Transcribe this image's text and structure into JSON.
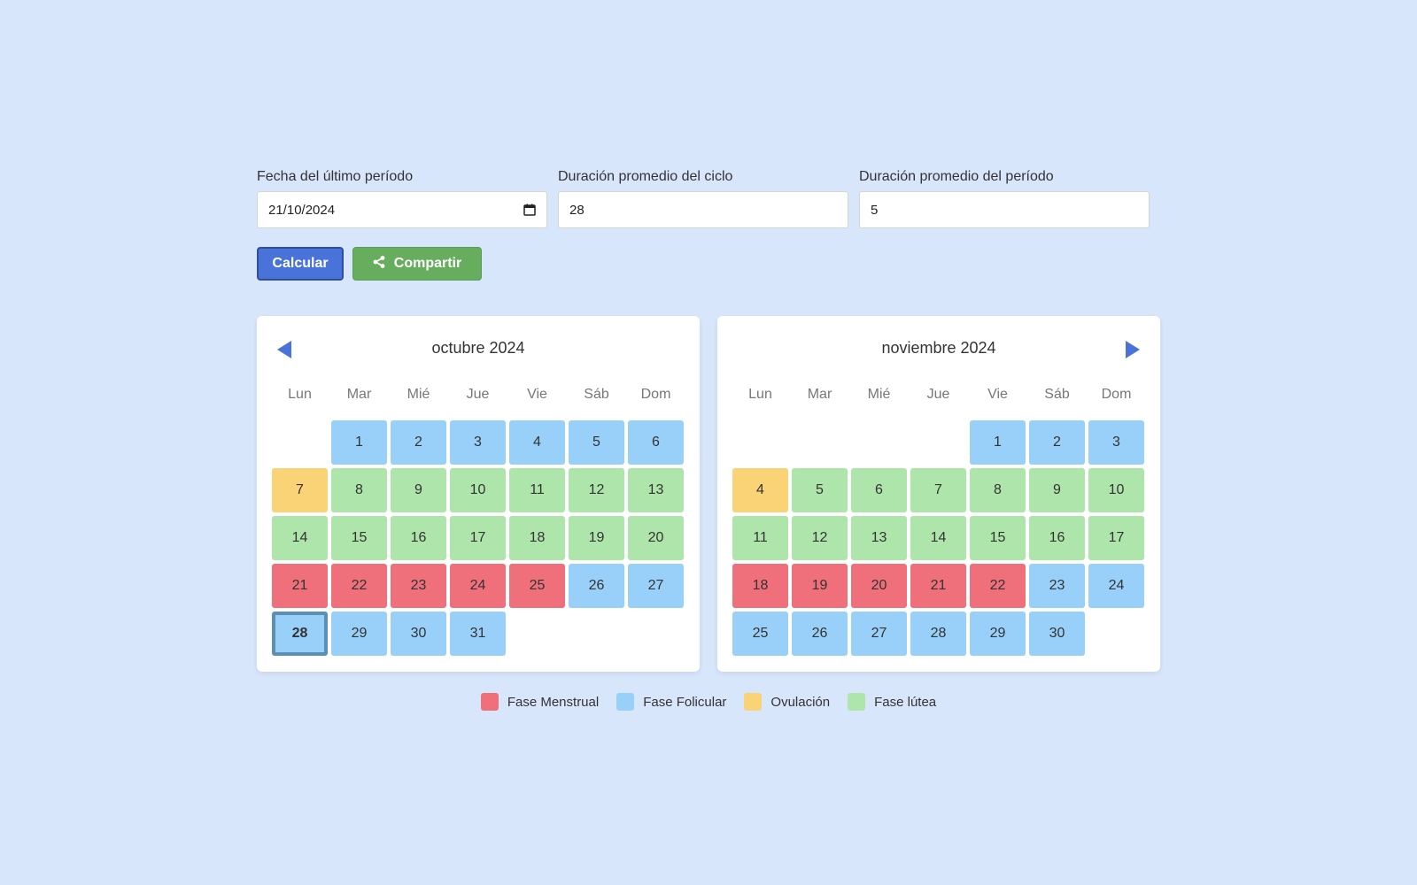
{
  "form": {
    "last_period": {
      "label": "Fecha del último período",
      "value": "21/10/2024"
    },
    "cycle_length": {
      "label": "Duración promedio del ciclo",
      "value": "28"
    },
    "period_length": {
      "label": "Duración promedio del período",
      "value": "5"
    }
  },
  "buttons": {
    "calculate": "Calcular",
    "share": "Compartir"
  },
  "weekdays": [
    "Lun",
    "Mar",
    "Mié",
    "Jue",
    "Vie",
    "Sáb",
    "Dom"
  ],
  "colors": {
    "menstrual": "#ef6f7b",
    "follicular": "#99d0f9",
    "ovulation": "#f9d376",
    "luteal": "#aee5aa"
  },
  "calendars": [
    {
      "title": "octubre 2024",
      "nav": "prev",
      "offset": 1,
      "today": 28,
      "days": [
        {
          "d": "1",
          "p": "follicular"
        },
        {
          "d": "2",
          "p": "follicular"
        },
        {
          "d": "3",
          "p": "follicular"
        },
        {
          "d": "4",
          "p": "follicular"
        },
        {
          "d": "5",
          "p": "follicular"
        },
        {
          "d": "6",
          "p": "follicular"
        },
        {
          "d": "7",
          "p": "ovulation"
        },
        {
          "d": "8",
          "p": "luteal"
        },
        {
          "d": "9",
          "p": "luteal"
        },
        {
          "d": "10",
          "p": "luteal"
        },
        {
          "d": "11",
          "p": "luteal"
        },
        {
          "d": "12",
          "p": "luteal"
        },
        {
          "d": "13",
          "p": "luteal"
        },
        {
          "d": "14",
          "p": "luteal"
        },
        {
          "d": "15",
          "p": "luteal"
        },
        {
          "d": "16",
          "p": "luteal"
        },
        {
          "d": "17",
          "p": "luteal"
        },
        {
          "d": "18",
          "p": "luteal"
        },
        {
          "d": "19",
          "p": "luteal"
        },
        {
          "d": "20",
          "p": "luteal"
        },
        {
          "d": "21",
          "p": "menstrual"
        },
        {
          "d": "22",
          "p": "menstrual"
        },
        {
          "d": "23",
          "p": "menstrual"
        },
        {
          "d": "24",
          "p": "menstrual"
        },
        {
          "d": "25",
          "p": "menstrual"
        },
        {
          "d": "26",
          "p": "follicular"
        },
        {
          "d": "27",
          "p": "follicular"
        },
        {
          "d": "28",
          "p": "follicular"
        },
        {
          "d": "29",
          "p": "follicular"
        },
        {
          "d": "30",
          "p": "follicular"
        },
        {
          "d": "31",
          "p": "follicular"
        }
      ]
    },
    {
      "title": "noviembre 2024",
      "nav": "next",
      "offset": 4,
      "today": null,
      "days": [
        {
          "d": "1",
          "p": "follicular"
        },
        {
          "d": "2",
          "p": "follicular"
        },
        {
          "d": "3",
          "p": "follicular"
        },
        {
          "d": "4",
          "p": "ovulation"
        },
        {
          "d": "5",
          "p": "luteal"
        },
        {
          "d": "6",
          "p": "luteal"
        },
        {
          "d": "7",
          "p": "luteal"
        },
        {
          "d": "8",
          "p": "luteal"
        },
        {
          "d": "9",
          "p": "luteal"
        },
        {
          "d": "10",
          "p": "luteal"
        },
        {
          "d": "11",
          "p": "luteal"
        },
        {
          "d": "12",
          "p": "luteal"
        },
        {
          "d": "13",
          "p": "luteal"
        },
        {
          "d": "14",
          "p": "luteal"
        },
        {
          "d": "15",
          "p": "luteal"
        },
        {
          "d": "16",
          "p": "luteal"
        },
        {
          "d": "17",
          "p": "luteal"
        },
        {
          "d": "18",
          "p": "menstrual"
        },
        {
          "d": "19",
          "p": "menstrual"
        },
        {
          "d": "20",
          "p": "menstrual"
        },
        {
          "d": "21",
          "p": "menstrual"
        },
        {
          "d": "22",
          "p": "menstrual"
        },
        {
          "d": "23",
          "p": "follicular"
        },
        {
          "d": "24",
          "p": "follicular"
        },
        {
          "d": "25",
          "p": "follicular"
        },
        {
          "d": "26",
          "p": "follicular"
        },
        {
          "d": "27",
          "p": "follicular"
        },
        {
          "d": "28",
          "p": "follicular"
        },
        {
          "d": "29",
          "p": "follicular"
        },
        {
          "d": "30",
          "p": "follicular"
        }
      ]
    }
  ],
  "legend": [
    {
      "label": "Fase Menstrual",
      "phase": "menstrual"
    },
    {
      "label": "Fase Folicular",
      "phase": "follicular"
    },
    {
      "label": "Ovulación",
      "phase": "ovulation"
    },
    {
      "label": "Fase lútea",
      "phase": "luteal"
    }
  ]
}
